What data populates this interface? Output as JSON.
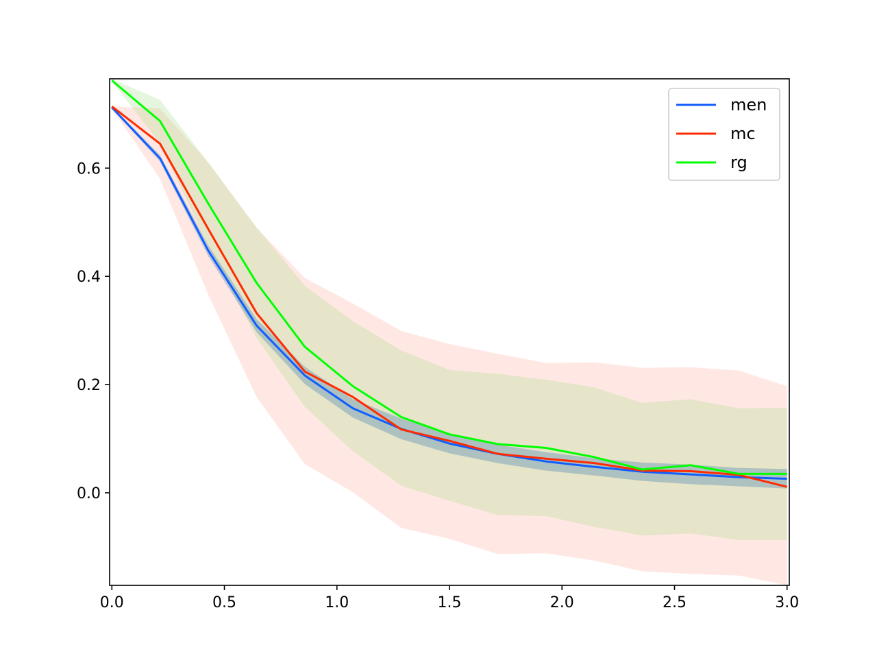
{
  "chart_data": {
    "type": "line",
    "xlim": [
      -0.01,
      3.01
    ],
    "ylim": [
      -0.171,
      0.765
    ],
    "x_ticks": [
      0.0,
      0.5,
      1.0,
      1.5,
      2.0,
      2.5,
      3.0
    ],
    "x_tick_labels": [
      "0.0",
      "0.5",
      "1.0",
      "1.5",
      "2.0",
      "2.5",
      "3.0"
    ],
    "y_ticks": [
      0.0,
      0.2,
      0.4,
      0.6
    ],
    "y_tick_labels": [
      "0.0",
      "0.2",
      "0.4",
      "0.6"
    ],
    "grid": false,
    "legend_position": "top-right",
    "x": [
      0.0,
      0.214,
      0.429,
      0.643,
      0.857,
      1.071,
      1.286,
      1.5,
      1.714,
      1.929,
      2.143,
      2.357,
      2.571,
      2.786,
      3.0
    ],
    "series": [
      {
        "name": "men",
        "color": "#0f5eff",
        "band_color": "#2b6fb0",
        "band_opacity": 0.3,
        "values": [
          0.712,
          0.618,
          0.447,
          0.309,
          0.217,
          0.156,
          0.118,
          0.091,
          0.072,
          0.058,
          0.048,
          0.039,
          0.034,
          0.029,
          0.026
        ],
        "lower": [
          0.71,
          0.612,
          0.437,
          0.297,
          0.201,
          0.139,
          0.099,
          0.073,
          0.055,
          0.041,
          0.032,
          0.022,
          0.016,
          0.012,
          0.008
        ],
        "upper": [
          0.714,
          0.624,
          0.457,
          0.321,
          0.233,
          0.173,
          0.137,
          0.109,
          0.089,
          0.075,
          0.064,
          0.056,
          0.052,
          0.046,
          0.044
        ]
      },
      {
        "name": "mc",
        "color": "#ff2b00",
        "band_color": "#ff7f66",
        "band_opacity": 0.18,
        "values": [
          0.714,
          0.645,
          0.487,
          0.332,
          0.224,
          0.177,
          0.117,
          0.096,
          0.072,
          0.063,
          0.055,
          0.041,
          0.04,
          0.033,
          0.011
        ],
        "lower": [
          0.71,
          0.58,
          0.365,
          0.177,
          0.053,
          0.001,
          -0.065,
          -0.085,
          -0.113,
          -0.112,
          -0.125,
          -0.145,
          -0.15,
          -0.153,
          -0.171
        ],
        "upper": [
          0.714,
          0.71,
          0.61,
          0.49,
          0.397,
          0.35,
          0.299,
          0.275,
          0.257,
          0.24,
          0.241,
          0.231,
          0.232,
          0.226,
          0.197
        ]
      },
      {
        "name": "rg",
        "color": "#00ff00",
        "band_color": "#9bd97a",
        "band_opacity": 0.25,
        "values": [
          0.762,
          0.687,
          0.534,
          0.388,
          0.27,
          0.197,
          0.14,
          0.108,
          0.09,
          0.083,
          0.066,
          0.043,
          0.051,
          0.035,
          0.035
        ],
        "lower": [
          0.76,
          0.646,
          0.455,
          0.286,
          0.159,
          0.077,
          0.013,
          -0.015,
          -0.041,
          -0.043,
          -0.063,
          -0.079,
          -0.075,
          -0.087,
          -0.087
        ],
        "upper": [
          0.765,
          0.726,
          0.61,
          0.49,
          0.383,
          0.317,
          0.263,
          0.227,
          0.22,
          0.209,
          0.195,
          0.166,
          0.173,
          0.156,
          0.157
        ]
      }
    ]
  }
}
